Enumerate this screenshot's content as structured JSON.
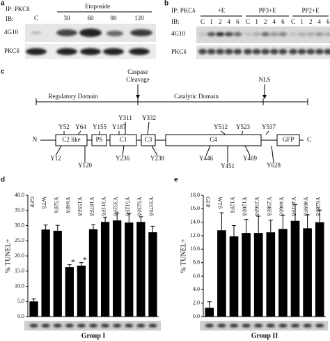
{
  "panel_a": {
    "letter": "a",
    "ip": "IP: PKCδ",
    "ib": "IB:",
    "treatment": "Etoposide",
    "lanes": [
      "C",
      "30",
      "60",
      "90",
      "120"
    ],
    "rows": [
      "4G10",
      "PKCδ"
    ]
  },
  "panel_b": {
    "letter": "b",
    "ip": "IP: PKCδ",
    "ib": "IB:",
    "groups": [
      "+E",
      "PP3+E",
      "PP2+E"
    ],
    "lanes": [
      "C",
      "1",
      "2",
      "4",
      "6",
      "C",
      "1",
      "2",
      "4",
      "6",
      "C",
      "1",
      "2",
      "4",
      "6"
    ],
    "rows": [
      "4G10",
      "PKCδ"
    ]
  },
  "panel_c": {
    "letter": "c",
    "regulatory": "Regulatory Domain",
    "caspase": [
      "Caspase",
      "Cleavage"
    ],
    "catalytic": "Catalytic Domain",
    "nls": "NLS",
    "termini": [
      "N",
      "C"
    ],
    "domains": [
      "C2 like",
      "PS",
      "C1",
      "C3",
      "C4",
      "GFP"
    ],
    "sites_top": [
      "Y52",
      "Y64",
      "Y155",
      "Y187",
      "Y311",
      "Y332",
      "Y512",
      "Y523",
      "Y537"
    ],
    "sites_bottom": [
      "Y12",
      "Y120",
      "Y236",
      "Y238",
      "Y446",
      "Y451",
      "Y469",
      "Y628"
    ]
  },
  "chart_data": [
    {
      "type": "bar",
      "letter": "d",
      "ylabel": "% TUNEL+",
      "xlabel": "Group I",
      "color": "#000000",
      "categories": [
        "GFP",
        "WTδ",
        "Y52Fδ",
        "Y64Fδ",
        "Y155Fδ",
        "Y187Fδ",
        "Y311Fδ",
        "Y332Fδ",
        "Y512Fδ",
        "Y523Fδ",
        "Y537Fδ"
      ],
      "values": [
        5,
        28.7,
        28.3,
        16.3,
        16.8,
        28.8,
        31.2,
        31.7,
        31,
        31.2,
        27.8
      ],
      "errors": [
        0.8,
        1.5,
        1.8,
        0.8,
        1,
        1.5,
        1.6,
        2.5,
        3,
        1.7,
        2
      ],
      "annotations": [
        {
          "text": "*",
          "category": "Y64Fδ"
        },
        {
          "text": "*",
          "category": "Y155Fδ"
        }
      ],
      "ylim": [
        0,
        40
      ],
      "yticks": [
        {
          "value": 0,
          "label": "0.0"
        },
        {
          "value": 5,
          "label": "5.0"
        },
        {
          "value": 10,
          "label": "10.0"
        },
        {
          "value": 15,
          "label": "15.0"
        },
        {
          "value": 20,
          "label": "20.0"
        },
        {
          "value": 25,
          "label": "25.0"
        },
        {
          "value": 30,
          "label": "30.0"
        },
        {
          "value": 35,
          "label": "35.0"
        },
        {
          "value": 40,
          "label": "40.0"
        }
      ]
    },
    {
      "type": "bar",
      "letter": "e",
      "ylabel": "% TUNEL+",
      "xlabel": "Group II",
      "color": "#000000",
      "categories": [
        "GFP",
        "WTδ",
        "Y12Fδ",
        "Y120Fδ",
        "Y236Fδ",
        "Y238Fδ",
        "Y446Fδ",
        "Y451Fδ",
        "Y469Fδ",
        "Y628Fδ"
      ],
      "values": [
        1.3,
        12.8,
        11.9,
        12.4,
        12.4,
        12.5,
        13,
        14.2,
        13.1,
        14
      ],
      "errors": [
        0.9,
        2.6,
        1.6,
        2,
        2.5,
        1.8,
        2,
        2.4,
        2,
        1.8
      ],
      "annotations": [],
      "ylim": [
        0,
        18
      ],
      "yticks": [
        {
          "value": 0,
          "label": "0.0"
        },
        {
          "value": 2,
          "label": "2.0"
        },
        {
          "value": 4,
          "label": "4.0"
        },
        {
          "value": 6,
          "label": "6.0"
        },
        {
          "value": 8,
          "label": "8.0"
        },
        {
          "value": 10,
          "label": "10.0"
        },
        {
          "value": 12,
          "label": "12.0"
        },
        {
          "value": 14,
          "label": "14.0"
        },
        {
          "value": 16,
          "label": "16.0"
        },
        {
          "value": 18,
          "label": "18.0"
        }
      ]
    }
  ]
}
